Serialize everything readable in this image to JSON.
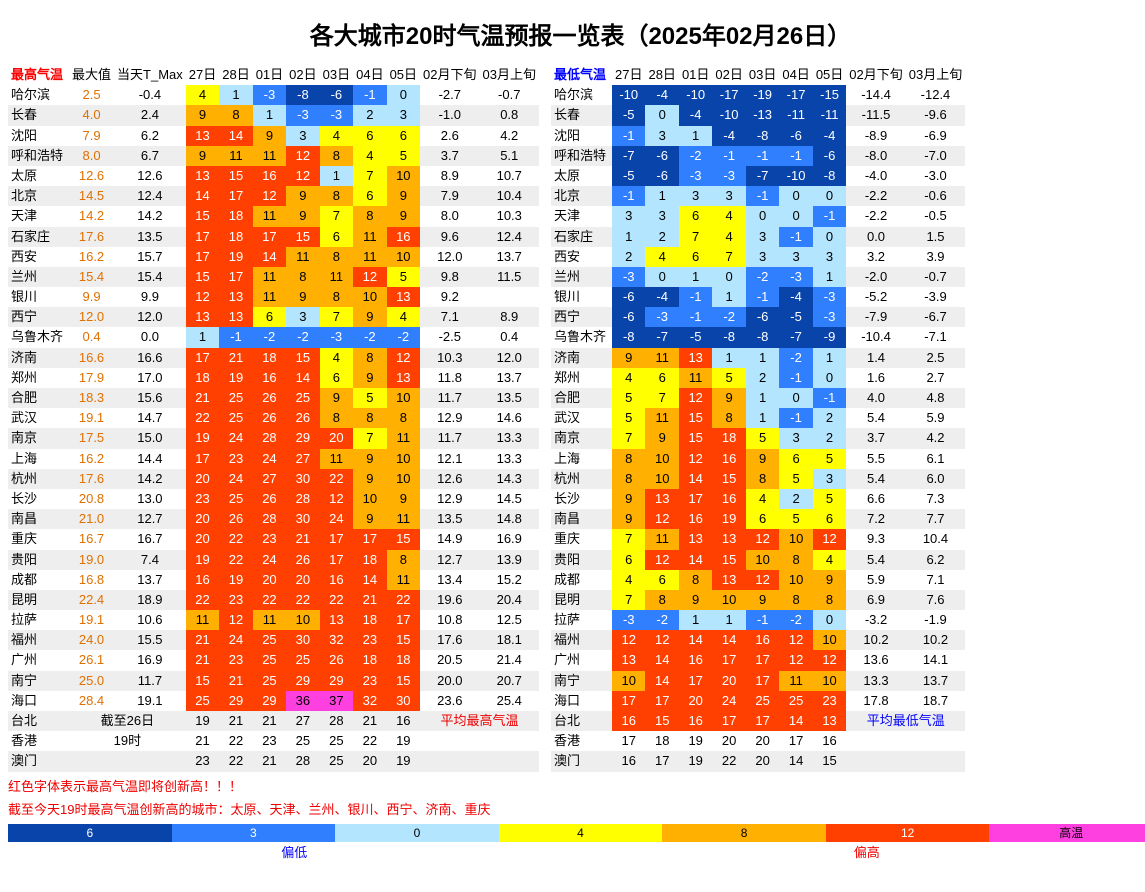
{
  "title": "各大城市20时气温预报一览表（2025年02月26日）",
  "colors": {
    "neg6": "#0844aa",
    "neg3": "#2f7fff",
    "zero": "#b3e5ff",
    "pos4": "#ffff00",
    "pos8": "#ffb000",
    "pos12": "#ff4000",
    "hot": "#ff40e0",
    "blank": "#ffffff",
    "alt": "#eeeeee"
  },
  "thresholds": [
    -6,
    -3,
    0,
    4,
    8,
    12,
    35
  ],
  "leftHeader": {
    "title": "最高气温",
    "cols": [
      "最大值",
      "当天T_Max",
      "27日",
      "28日",
      "01日",
      "02日",
      "03日",
      "04日",
      "05日",
      "02月下旬",
      "03月上旬"
    ]
  },
  "rightHeader": {
    "title": "最低气温",
    "cols": [
      "27日",
      "28日",
      "01日",
      "02日",
      "03日",
      "04日",
      "05日",
      "02月下旬",
      "03月上旬"
    ]
  },
  "leftRows": [
    {
      "city": "哈尔滨",
      "max": "2.5",
      "tmax": "-0.4",
      "f": [
        4,
        1,
        -3,
        -8,
        -6,
        -1,
        0
      ],
      "d1": "-2.7",
      "d2": "-0.7"
    },
    {
      "city": "长春",
      "max": "4.0",
      "tmax": "2.4",
      "f": [
        9,
        8,
        1,
        -3,
        -3,
        2,
        3
      ],
      "d1": "-1.0",
      "d2": "0.8"
    },
    {
      "city": "沈阳",
      "max": "7.9",
      "tmax": "6.2",
      "f": [
        13,
        14,
        9,
        3,
        4,
        6,
        6
      ],
      "d1": "2.6",
      "d2": "4.2"
    },
    {
      "city": "呼和浩特",
      "max": "8.0",
      "tmax": "6.7",
      "f": [
        9,
        11,
        11,
        12,
        8,
        4,
        5
      ],
      "d1": "3.7",
      "d2": "5.1"
    },
    {
      "city": "太原",
      "max": "12.6",
      "tmax": "12.6",
      "f": [
        13,
        15,
        16,
        12,
        1,
        7,
        10
      ],
      "d1": "8.9",
      "d2": "10.7"
    },
    {
      "city": "北京",
      "max": "14.5",
      "tmax": "12.4",
      "f": [
        14,
        17,
        12,
        9,
        8,
        6,
        9
      ],
      "d1": "7.9",
      "d2": "10.4"
    },
    {
      "city": "天津",
      "max": "14.2",
      "tmax": "14.2",
      "f": [
        15,
        18,
        11,
        9,
        7,
        8,
        9
      ],
      "d1": "8.0",
      "d2": "10.3"
    },
    {
      "city": "石家庄",
      "max": "17.6",
      "tmax": "13.5",
      "f": [
        17,
        18,
        17,
        15,
        6,
        11,
        16
      ],
      "d1": "9.6",
      "d2": "12.4"
    },
    {
      "city": "西安",
      "max": "16.2",
      "tmax": "15.7",
      "f": [
        17,
        19,
        14,
        11,
        8,
        11,
        10
      ],
      "d1": "12.0",
      "d2": "13.7"
    },
    {
      "city": "兰州",
      "max": "15.4",
      "tmax": "15.4",
      "f": [
        15,
        17,
        11,
        8,
        11,
        12,
        5
      ],
      "d1": "9.8",
      "d2": "11.5"
    },
    {
      "city": "银川",
      "max": "9.9",
      "tmax": "9.9",
      "f": [
        12,
        13,
        11,
        9,
        8,
        10,
        13
      ],
      "d1": "9.2",
      "d2": ""
    },
    {
      "city": "西宁",
      "max": "12.0",
      "tmax": "12.0",
      "f": [
        13,
        13,
        6,
        3,
        7,
        9,
        4
      ],
      "d1": "7.1",
      "d2": "8.9"
    },
    {
      "city": "乌鲁木齐",
      "max": "0.4",
      "tmax": "0.0",
      "f": [
        1,
        -1,
        -2,
        -2,
        -3,
        -2,
        -2
      ],
      "d1": "-2.5",
      "d2": "0.4"
    },
    {
      "city": "济南",
      "max": "16.6",
      "tmax": "16.6",
      "f": [
        17,
        21,
        18,
        15,
        4,
        8,
        12
      ],
      "d1": "10.3",
      "d2": "12.0"
    },
    {
      "city": "郑州",
      "max": "17.9",
      "tmax": "17.0",
      "f": [
        18,
        19,
        16,
        14,
        6,
        9,
        13
      ],
      "d1": "11.8",
      "d2": "13.7"
    },
    {
      "city": "合肥",
      "max": "18.3",
      "tmax": "15.6",
      "f": [
        21,
        25,
        26,
        25,
        9,
        5,
        10
      ],
      "d1": "11.7",
      "d2": "13.5"
    },
    {
      "city": "武汉",
      "max": "19.1",
      "tmax": "14.7",
      "f": [
        22,
        25,
        26,
        26,
        8,
        8,
        8
      ],
      "d1": "12.9",
      "d2": "14.6"
    },
    {
      "city": "南京",
      "max": "17.5",
      "tmax": "15.0",
      "f": [
        19,
        24,
        28,
        29,
        20,
        7,
        11
      ],
      "d1": "11.7",
      "d2": "13.3"
    },
    {
      "city": "上海",
      "max": "16.2",
      "tmax": "14.4",
      "f": [
        17,
        23,
        24,
        27,
        11,
        9,
        10
      ],
      "d1": "12.1",
      "d2": "13.3"
    },
    {
      "city": "杭州",
      "max": "17.6",
      "tmax": "14.2",
      "f": [
        20,
        24,
        27,
        30,
        22,
        9,
        10
      ],
      "d1": "12.6",
      "d2": "14.3"
    },
    {
      "city": "长沙",
      "max": "20.8",
      "tmax": "13.0",
      "f": [
        23,
        25,
        26,
        28,
        12,
        10,
        9
      ],
      "d1": "12.9",
      "d2": "14.5"
    },
    {
      "city": "南昌",
      "max": "21.0",
      "tmax": "12.7",
      "f": [
        20,
        26,
        28,
        30,
        24,
        9,
        11
      ],
      "d1": "13.5",
      "d2": "14.8"
    },
    {
      "city": "重庆",
      "max": "16.7",
      "tmax": "16.7",
      "f": [
        20,
        22,
        23,
        21,
        17,
        17,
        15
      ],
      "d1": "14.9",
      "d2": "16.9"
    },
    {
      "city": "贵阳",
      "max": "19.0",
      "tmax": "7.4",
      "f": [
        19,
        22,
        24,
        26,
        17,
        18,
        8
      ],
      "d1": "12.7",
      "d2": "13.9"
    },
    {
      "city": "成都",
      "max": "16.8",
      "tmax": "13.7",
      "f": [
        16,
        19,
        20,
        20,
        16,
        14,
        11
      ],
      "d1": "13.4",
      "d2": "15.2"
    },
    {
      "city": "昆明",
      "max": "22.4",
      "tmax": "18.9",
      "f": [
        22,
        23,
        22,
        22,
        22,
        21,
        22
      ],
      "d1": "19.6",
      "d2": "20.4"
    },
    {
      "city": "拉萨",
      "max": "19.1",
      "tmax": "10.6",
      "f": [
        11,
        12,
        11,
        10,
        13,
        18,
        17
      ],
      "d1": "10.8",
      "d2": "12.5"
    },
    {
      "city": "福州",
      "max": "24.0",
      "tmax": "15.5",
      "f": [
        21,
        24,
        25,
        30,
        32,
        23,
        15
      ],
      "d1": "17.6",
      "d2": "18.1"
    },
    {
      "city": "广州",
      "max": "26.1",
      "tmax": "16.9",
      "f": [
        21,
        23,
        25,
        25,
        26,
        18,
        18
      ],
      "d1": "20.5",
      "d2": "21.4"
    },
    {
      "city": "南宁",
      "max": "25.0",
      "tmax": "11.7",
      "f": [
        15,
        21,
        25,
        29,
        29,
        23,
        15
      ],
      "d1": "20.0",
      "d2": "20.7"
    },
    {
      "city": "海口",
      "max": "28.4",
      "tmax": "19.1",
      "f": [
        25,
        29,
        29,
        36,
        37,
        32,
        30
      ],
      "d1": "23.6",
      "d2": "25.4"
    },
    {
      "city": "台北",
      "note": "截至26日",
      "f": [
        19,
        21,
        21,
        27,
        28,
        21,
        16
      ],
      "avg": "平均最高气温",
      "avgRed": true
    },
    {
      "city": "香港",
      "note": "19时",
      "f": [
        21,
        22,
        23,
        25,
        25,
        22,
        19
      ]
    },
    {
      "city": "澳门",
      "note": "",
      "f": [
        23,
        22,
        21,
        28,
        25,
        20,
        19
      ]
    }
  ],
  "rightRows": [
    {
      "city": "哈尔滨",
      "f": [
        -10,
        -4,
        -10,
        -17,
        -19,
        -17,
        -15
      ],
      "d1": "-14.4",
      "d2": "-12.4"
    },
    {
      "city": "长春",
      "f": [
        -5,
        0,
        -4,
        -10,
        -13,
        -11,
        -11
      ],
      "d1": "-11.5",
      "d2": "-9.6"
    },
    {
      "city": "沈阳",
      "f": [
        -1,
        3,
        1,
        -4,
        -8,
        -6,
        -4
      ],
      "d1": "-8.9",
      "d2": "-6.9"
    },
    {
      "city": "呼和浩特",
      "f": [
        -7,
        -6,
        -2,
        -1,
        -1,
        -1,
        -6
      ],
      "d1": "-8.0",
      "d2": "-7.0"
    },
    {
      "city": "太原",
      "f": [
        -5,
        -6,
        -3,
        -3,
        -7,
        -10,
        -8
      ],
      "d1": "-4.0",
      "d2": "-3.0"
    },
    {
      "city": "北京",
      "f": [
        -1,
        1,
        3,
        3,
        -1,
        0,
        0
      ],
      "d1": "-2.2",
      "d2": "-0.6"
    },
    {
      "city": "天津",
      "f": [
        3,
        3,
        6,
        4,
        0,
        0,
        -1
      ],
      "d1": "-2.2",
      "d2": "-0.5"
    },
    {
      "city": "石家庄",
      "f": [
        1,
        2,
        7,
        4,
        3,
        -1,
        0
      ],
      "d1": "0.0",
      "d2": "1.5"
    },
    {
      "city": "西安",
      "f": [
        2,
        4,
        6,
        7,
        3,
        3,
        3
      ],
      "d1": "3.2",
      "d2": "3.9"
    },
    {
      "city": "兰州",
      "f": [
        -3,
        0,
        1,
        0,
        -2,
        -3,
        1
      ],
      "d1": "-2.0",
      "d2": "-0.7"
    },
    {
      "city": "银川",
      "f": [
        -6,
        -4,
        -1,
        1,
        -1,
        -4,
        -3
      ],
      "d1": "-5.2",
      "d2": "-3.9"
    },
    {
      "city": "西宁",
      "f": [
        -6,
        -3,
        -1,
        -2,
        -6,
        -5,
        -3
      ],
      "d1": "-7.9",
      "d2": "-6.7"
    },
    {
      "city": "乌鲁木齐",
      "f": [
        -8,
        -7,
        -5,
        -8,
        -8,
        -7,
        -9
      ],
      "d1": "-10.4",
      "d2": "-7.1"
    },
    {
      "city": "济南",
      "f": [
        9,
        11,
        13,
        1,
        1,
        -2,
        1
      ],
      "d1": "1.4",
      "d2": "2.5"
    },
    {
      "city": "郑州",
      "f": [
        4,
        6,
        11,
        5,
        2,
        -1,
        0
      ],
      "d1": "1.6",
      "d2": "2.7"
    },
    {
      "city": "合肥",
      "f": [
        5,
        7,
        12,
        9,
        1,
        0,
        -1
      ],
      "d1": "4.0",
      "d2": "4.8"
    },
    {
      "city": "武汉",
      "f": [
        5,
        11,
        15,
        8,
        1,
        -1,
        2
      ],
      "d1": "5.4",
      "d2": "5.9"
    },
    {
      "city": "南京",
      "f": [
        7,
        9,
        15,
        18,
        5,
        3,
        2
      ],
      "d1": "3.7",
      "d2": "4.2"
    },
    {
      "city": "上海",
      "f": [
        8,
        10,
        12,
        16,
        9,
        6,
        5
      ],
      "d1": "5.5",
      "d2": "6.1"
    },
    {
      "city": "杭州",
      "f": [
        8,
        10,
        14,
        15,
        8,
        5,
        3
      ],
      "d1": "5.4",
      "d2": "6.0"
    },
    {
      "city": "长沙",
      "f": [
        9,
        13,
        17,
        16,
        4,
        2,
        5
      ],
      "d1": "6.6",
      "d2": "7.3"
    },
    {
      "city": "南昌",
      "f": [
        9,
        12,
        16,
        19,
        6,
        5,
        6
      ],
      "d1": "7.2",
      "d2": "7.7"
    },
    {
      "city": "重庆",
      "f": [
        7,
        11,
        13,
        13,
        12,
        10,
        12
      ],
      "d1": "9.3",
      "d2": "10.4"
    },
    {
      "city": "贵阳",
      "f": [
        6,
        12,
        14,
        15,
        10,
        8,
        4
      ],
      "d1": "5.4",
      "d2": "6.2"
    },
    {
      "city": "成都",
      "f": [
        4,
        6,
        8,
        13,
        12,
        10,
        9
      ],
      "d1": "5.9",
      "d2": "7.1"
    },
    {
      "city": "昆明",
      "f": [
        7,
        8,
        9,
        10,
        9,
        8,
        8
      ],
      "d1": "6.9",
      "d2": "7.6"
    },
    {
      "city": "拉萨",
      "f": [
        -3,
        -2,
        1,
        1,
        -1,
        -2,
        0
      ],
      "d1": "-3.2",
      "d2": "-1.9"
    },
    {
      "city": "福州",
      "f": [
        12,
        12,
        14,
        14,
        16,
        12,
        10
      ],
      "d1": "10.2",
      "d2": "10.2"
    },
    {
      "city": "广州",
      "f": [
        13,
        14,
        16,
        17,
        17,
        12,
        12
      ],
      "d1": "13.6",
      "d2": "14.1"
    },
    {
      "city": "南宁",
      "f": [
        10,
        14,
        17,
        20,
        17,
        11,
        10
      ],
      "d1": "13.3",
      "d2": "13.7"
    },
    {
      "city": "海口",
      "f": [
        17,
        17,
        20,
        24,
        25,
        25,
        23
      ],
      "d1": "17.8",
      "d2": "18.7"
    },
    {
      "city": "台北",
      "f": [
        16,
        15,
        16,
        17,
        17,
        14,
        13
      ],
      "avg": "平均最低气温",
      "avgBlue": true
    },
    {
      "city": "香港",
      "f": [
        17,
        18,
        19,
        20,
        20,
        17,
        16
      ]
    },
    {
      "city": "澳门",
      "f": [
        16,
        17,
        19,
        22,
        20,
        14,
        15
      ]
    }
  ],
  "footnotes": {
    "line1": "红色字体表示最高气温即将创新高！！！",
    "line2": "截至今天19时最高气温创新高的城市：太原、天津、兰州、银川、西宁、济南、重庆"
  },
  "legend": {
    "ticks": [
      "6",
      "3",
      "0",
      "4",
      "8",
      "12",
      "高温"
    ],
    "low": "偏低",
    "high": "偏高"
  }
}
